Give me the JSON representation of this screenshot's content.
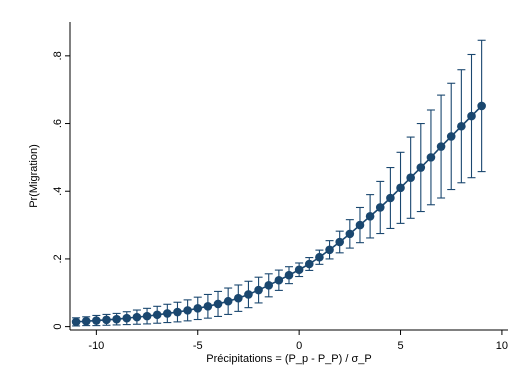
{
  "chart_data": {
    "type": "line",
    "title": "",
    "xlabel": "Précipitations = (P_p - P_P) / σ_P",
    "ylabel": "Pr(Migration)",
    "xlim": [
      -11.3,
      10.3
    ],
    "ylim": [
      -0.01,
      0.9
    ],
    "xticks": [
      -10,
      -5,
      0,
      5,
      10
    ],
    "xtick_labels": [
      "-10",
      "-5",
      "0",
      "5",
      "10"
    ],
    "yticks": [
      0,
      0.2,
      0.4,
      0.6,
      0.8
    ],
    "ytick_labels": [
      "0",
      ".2",
      ".4",
      ".6",
      ".8"
    ],
    "grid": false,
    "legend": "none",
    "series": [
      {
        "x": [
          -11,
          -10.5,
          -10,
          -9.5,
          -9,
          -8.5,
          -8,
          -7.5,
          -7,
          -6.5,
          -6,
          -5.5,
          -5,
          -4.5,
          -4,
          -3.5,
          -3,
          -2.5,
          -2,
          -1.5,
          -1,
          -0.5,
          0,
          0.5,
          1,
          1.5,
          2,
          2.5,
          3,
          3.5,
          4,
          4.5,
          5,
          5.5,
          6,
          6.5,
          7,
          7.5,
          8,
          8.5,
          9
        ],
        "y": [
          0.014,
          0.016,
          0.018,
          0.02,
          0.022,
          0.025,
          0.028,
          0.031,
          0.035,
          0.039,
          0.043,
          0.048,
          0.054,
          0.06,
          0.067,
          0.075,
          0.084,
          0.095,
          0.108,
          0.122,
          0.137,
          0.152,
          0.168,
          0.185,
          0.205,
          0.227,
          0.25,
          0.274,
          0.3,
          0.326,
          0.352,
          0.38,
          0.41,
          0.44,
          0.47,
          0.5,
          0.532,
          0.562,
          0.592,
          0.622,
          0.652
        ],
        "lower": [
          0.002,
          0.003,
          0.003,
          0.004,
          0.005,
          0.006,
          0.007,
          0.008,
          0.01,
          0.012,
          0.014,
          0.017,
          0.021,
          0.025,
          0.03,
          0.036,
          0.045,
          0.056,
          0.07,
          0.088,
          0.107,
          0.127,
          0.148,
          0.166,
          0.184,
          0.2,
          0.218,
          0.232,
          0.248,
          0.262,
          0.275,
          0.29,
          0.305,
          0.32,
          0.34,
          0.36,
          0.38,
          0.405,
          0.425,
          0.44,
          0.458
        ],
        "upper": [
          0.026,
          0.029,
          0.033,
          0.036,
          0.039,
          0.044,
          0.049,
          0.054,
          0.06,
          0.066,
          0.072,
          0.079,
          0.087,
          0.095,
          0.104,
          0.114,
          0.123,
          0.134,
          0.146,
          0.156,
          0.167,
          0.177,
          0.188,
          0.204,
          0.226,
          0.254,
          0.282,
          0.316,
          0.352,
          0.39,
          0.429,
          0.47,
          0.515,
          0.56,
          0.6,
          0.64,
          0.684,
          0.719,
          0.759,
          0.804,
          0.846
        ]
      }
    ],
    "colors": {
      "series": "#1a476f",
      "axis": "#000000",
      "background": "#ffffff"
    }
  }
}
